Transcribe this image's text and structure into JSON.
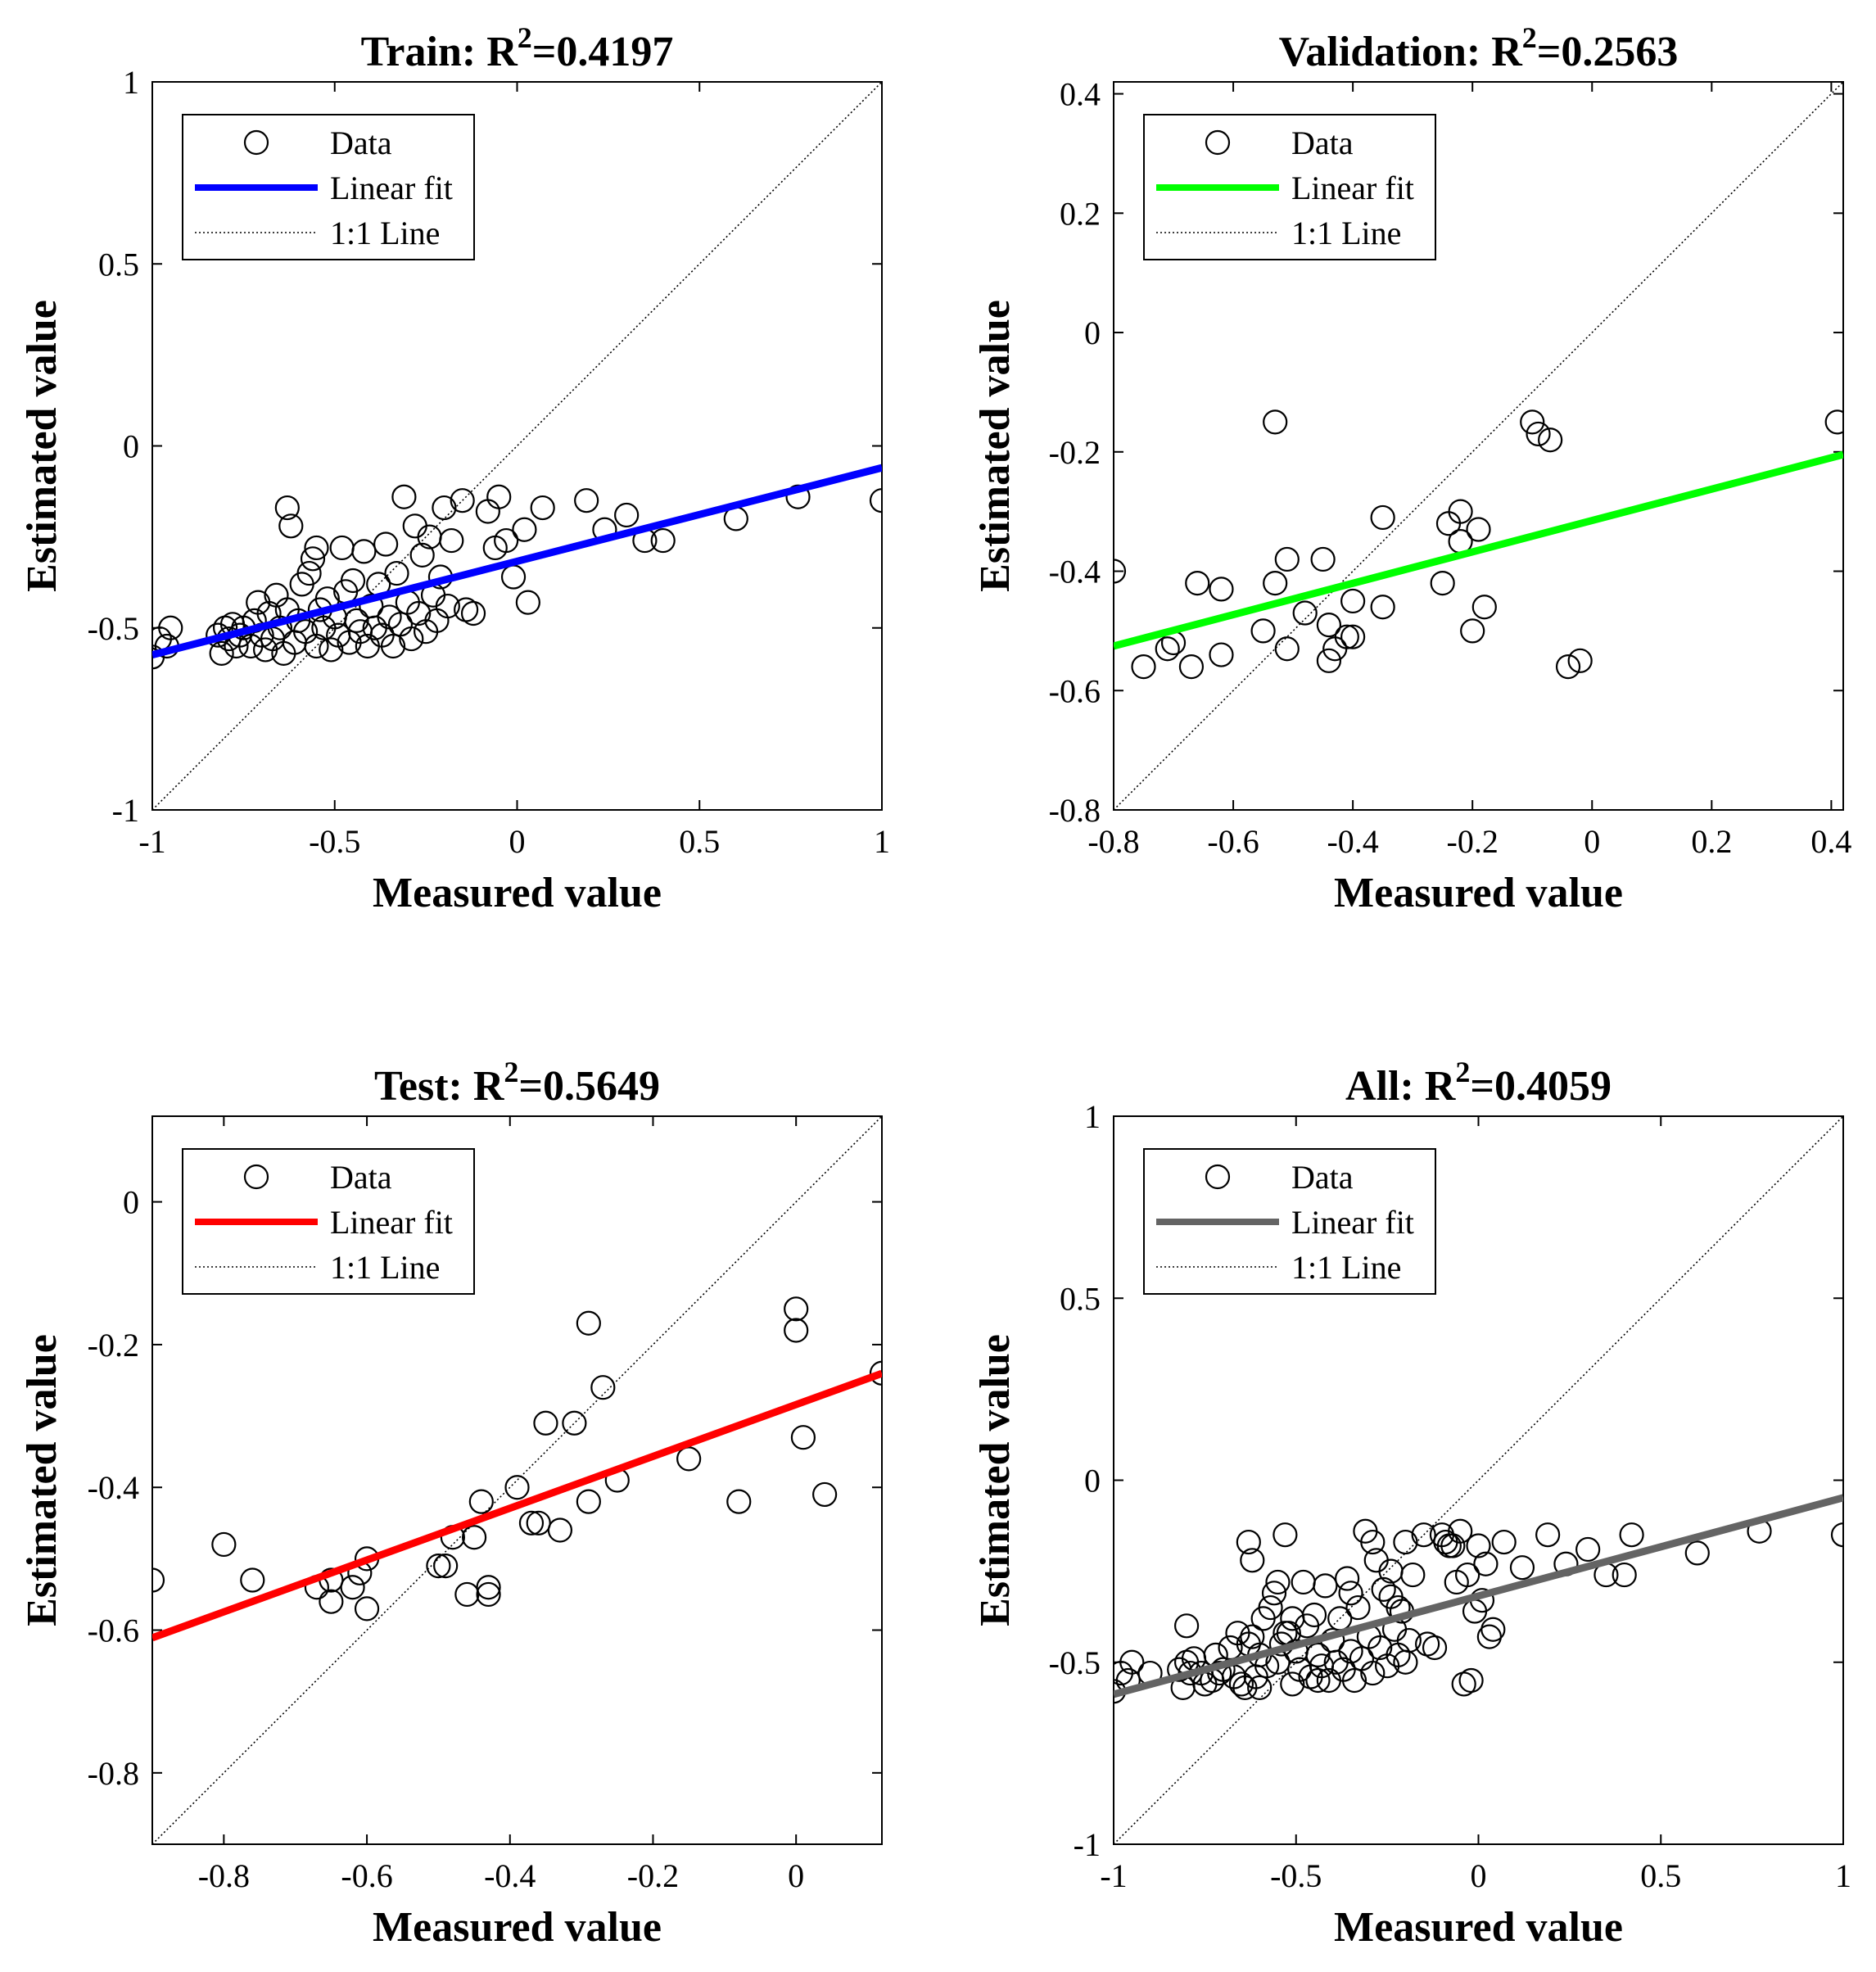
{
  "chart_data": [
    {
      "type": "scatter",
      "title": "Train: R",
      "title_sup": "2",
      "title_value": "=0.4197",
      "xlabel": "Measured value",
      "ylabel": "Estimated value",
      "xlim": [
        -1,
        1
      ],
      "ylim": [
        -1,
        1
      ],
      "xticks": [
        -1,
        -0.5,
        0,
        0.5,
        1
      ],
      "yticks": [
        -1,
        -0.5,
        0,
        0.5,
        1
      ],
      "xtick_labels": [
        "-1",
        "-0.5",
        "0",
        "0.5",
        "1"
      ],
      "ytick_labels": [
        "-1",
        "-0.5",
        "0",
        "0.5",
        "1"
      ],
      "fit_color": "#0000ff",
      "fit": {
        "slope": 0.257,
        "intercept": -0.317
      },
      "legend": {
        "data": "Data",
        "fit": "Linear fit",
        "identity": "1:1 Line",
        "position": "top-left"
      },
      "points": [
        [
          -1,
          -0.58
        ],
        [
          -0.98,
          -0.53
        ],
        [
          -0.96,
          -0.55
        ],
        [
          -0.95,
          -0.5
        ],
        [
          -0.82,
          -0.52
        ],
        [
          -0.81,
          -0.57
        ],
        [
          -0.8,
          -0.5
        ],
        [
          -0.79,
          -0.53
        ],
        [
          -0.78,
          -0.49
        ],
        [
          -0.77,
          -0.55
        ],
        [
          -0.76,
          -0.52
        ],
        [
          -0.75,
          -0.5
        ],
        [
          -0.73,
          -0.55
        ],
        [
          -0.72,
          -0.48
        ],
        [
          -0.71,
          -0.43
        ],
        [
          -0.7,
          -0.52
        ],
        [
          -0.69,
          -0.56
        ],
        [
          -0.68,
          -0.46
        ],
        [
          -0.67,
          -0.53
        ],
        [
          -0.66,
          -0.41
        ],
        [
          -0.65,
          -0.5
        ],
        [
          -0.64,
          -0.57
        ],
        [
          -0.63,
          -0.45
        ],
        [
          -0.63,
          -0.17
        ],
        [
          -0.62,
          -0.22
        ],
        [
          -0.61,
          -0.54
        ],
        [
          -0.6,
          -0.48
        ],
        [
          -0.59,
          -0.38
        ],
        [
          -0.58,
          -0.51
        ],
        [
          -0.57,
          -0.35
        ],
        [
          -0.56,
          -0.31
        ],
        [
          -0.55,
          -0.28
        ],
        [
          -0.55,
          -0.55
        ],
        [
          -0.54,
          -0.45
        ],
        [
          -0.53,
          -0.5
        ],
        [
          -0.52,
          -0.42
        ],
        [
          -0.51,
          -0.56
        ],
        [
          -0.5,
          -0.47
        ],
        [
          -0.49,
          -0.52
        ],
        [
          -0.48,
          -0.28
        ],
        [
          -0.47,
          -0.4
        ],
        [
          -0.46,
          -0.54
        ],
        [
          -0.45,
          -0.37
        ],
        [
          -0.44,
          -0.48
        ],
        [
          -0.43,
          -0.51
        ],
        [
          -0.42,
          -0.29
        ],
        [
          -0.41,
          -0.55
        ],
        [
          -0.4,
          -0.44
        ],
        [
          -0.39,
          -0.5
        ],
        [
          -0.38,
          -0.38
        ],
        [
          -0.37,
          -0.52
        ],
        [
          -0.36,
          -0.27
        ],
        [
          -0.35,
          -0.47
        ],
        [
          -0.34,
          -0.55
        ],
        [
          -0.33,
          -0.35
        ],
        [
          -0.32,
          -0.49
        ],
        [
          -0.31,
          -0.14
        ],
        [
          -0.3,
          -0.43
        ],
        [
          -0.29,
          -0.53
        ],
        [
          -0.28,
          -0.22
        ],
        [
          -0.27,
          -0.46
        ],
        [
          -0.26,
          -0.3
        ],
        [
          -0.25,
          -0.51
        ],
        [
          -0.24,
          -0.25
        ],
        [
          -0.23,
          -0.41
        ],
        [
          -0.22,
          -0.48
        ],
        [
          -0.21,
          -0.36
        ],
        [
          -0.2,
          -0.17
        ],
        [
          -0.19,
          -0.44
        ],
        [
          -0.18,
          -0.26
        ],
        [
          -0.15,
          -0.15
        ],
        [
          -0.14,
          -0.45
        ],
        [
          -0.12,
          -0.46
        ],
        [
          -0.08,
          -0.18
        ],
        [
          -0.06,
          -0.28
        ],
        [
          -0.05,
          -0.14
        ],
        [
          -0.03,
          -0.26
        ],
        [
          -0.01,
          -0.36
        ],
        [
          0.02,
          -0.23
        ],
        [
          0.03,
          -0.43
        ],
        [
          0.07,
          -0.17
        ],
        [
          0.19,
          -0.15
        ],
        [
          0.24,
          -0.23
        ],
        [
          0.3,
          -0.19
        ],
        [
          0.35,
          -0.26
        ],
        [
          0.4,
          -0.26
        ],
        [
          0.6,
          -0.2
        ],
        [
          0.77,
          -0.14
        ],
        [
          1,
          -0.15
        ]
      ]
    },
    {
      "type": "scatter",
      "title": "Validation: R",
      "title_sup": "2",
      "title_value": "=0.2563",
      "xlabel": "Measured value",
      "ylabel": "Estimated value",
      "xlim": [
        -0.8,
        0.42
      ],
      "ylim": [
        -0.8,
        0.42
      ],
      "xticks": [
        -0.8,
        -0.6,
        -0.4,
        -0.2,
        0,
        0.2,
        0.4
      ],
      "yticks": [
        -0.8,
        -0.6,
        -0.4,
        -0.2,
        0,
        0.2,
        0.4
      ],
      "xtick_labels": [
        "-0.8",
        "-0.6",
        "-0.4",
        "-0.2",
        "0",
        "0.2",
        "0.4"
      ],
      "ytick_labels": [
        "-0.8",
        "-0.6",
        "-0.4",
        "-0.2",
        "0",
        "0.2",
        "0.4"
      ],
      "fit_color": "#00ff00",
      "fit": {
        "slope": 0.263,
        "intercept": -0.315
      },
      "legend": {
        "data": "Data",
        "fit": "Linear fit",
        "identity": "1:1 Line",
        "position": "top-left"
      },
      "points": [
        [
          -0.8,
          -0.4
        ],
        [
          -0.75,
          -0.56
        ],
        [
          -0.71,
          -0.53
        ],
        [
          -0.7,
          -0.52
        ],
        [
          -0.67,
          -0.56
        ],
        [
          -0.66,
          -0.42
        ],
        [
          -0.62,
          -0.54
        ],
        [
          -0.62,
          -0.43
        ],
        [
          -0.55,
          -0.5
        ],
        [
          -0.53,
          -0.42
        ],
        [
          -0.53,
          -0.15
        ],
        [
          -0.51,
          -0.53
        ],
        [
          -0.51,
          -0.38
        ],
        [
          -0.48,
          -0.47
        ],
        [
          -0.45,
          -0.38
        ],
        [
          -0.44,
          -0.49
        ],
        [
          -0.44,
          -0.55
        ],
        [
          -0.43,
          -0.53
        ],
        [
          -0.41,
          -0.51
        ],
        [
          -0.4,
          -0.45
        ],
        [
          -0.4,
          -0.51
        ],
        [
          -0.35,
          -0.31
        ],
        [
          -0.35,
          -0.46
        ],
        [
          -0.25,
          -0.42
        ],
        [
          -0.24,
          -0.32
        ],
        [
          -0.22,
          -0.35
        ],
        [
          -0.22,
          -0.3
        ],
        [
          -0.2,
          -0.5
        ],
        [
          -0.19,
          -0.33
        ],
        [
          -0.18,
          -0.46
        ],
        [
          -0.1,
          -0.15
        ],
        [
          -0.09,
          -0.17
        ],
        [
          -0.07,
          -0.18
        ],
        [
          -0.04,
          -0.56
        ],
        [
          -0.02,
          -0.55
        ],
        [
          0.41,
          -0.15
        ]
      ]
    },
    {
      "type": "scatter",
      "title": "Test: R",
      "title_sup": "2",
      "title_value": "=0.5649",
      "xlabel": "Measured value",
      "ylabel": "Estimated value",
      "xlim": [
        -0.9,
        0.12
      ],
      "ylim": [
        -0.9,
        0.12
      ],
      "xticks": [
        -0.8,
        -0.6,
        -0.4,
        -0.2,
        0
      ],
      "yticks": [
        -0.8,
        -0.6,
        -0.4,
        -0.2,
        0
      ],
      "xtick_labels": [
        "-0.8",
        "-0.6",
        "-0.4",
        "-0.2",
        "0"
      ],
      "ytick_labels": [
        "-0.8",
        "-0.6",
        "-0.4",
        "-0.2",
        "0"
      ],
      "fit_color": "#ff0000",
      "fit": {
        "slope": 0.363,
        "intercept": -0.284
      },
      "legend": {
        "data": "Data",
        "fit": "Linear fit",
        "identity": "1:1 Line",
        "position": "top-left"
      },
      "points": [
        [
          -0.9,
          -0.53
        ],
        [
          -0.8,
          -0.48
        ],
        [
          -0.76,
          -0.53
        ],
        [
          -0.67,
          -0.54
        ],
        [
          -0.65,
          -0.53
        ],
        [
          -0.65,
          -0.56
        ],
        [
          -0.62,
          -0.54
        ],
        [
          -0.61,
          -0.52
        ],
        [
          -0.6,
          -0.5
        ],
        [
          -0.6,
          -0.57
        ],
        [
          -0.5,
          -0.51
        ],
        [
          -0.49,
          -0.51
        ],
        [
          -0.48,
          -0.47
        ],
        [
          -0.46,
          -0.55
        ],
        [
          -0.45,
          -0.47
        ],
        [
          -0.44,
          -0.42
        ],
        [
          -0.43,
          -0.54
        ],
        [
          -0.43,
          -0.55
        ],
        [
          -0.39,
          -0.4
        ],
        [
          -0.37,
          -0.45
        ],
        [
          -0.36,
          -0.45
        ],
        [
          -0.35,
          -0.31
        ],
        [
          -0.33,
          -0.46
        ],
        [
          -0.31,
          -0.31
        ],
        [
          -0.29,
          -0.42
        ],
        [
          -0.29,
          -0.17
        ],
        [
          -0.27,
          -0.26
        ],
        [
          -0.25,
          -0.39
        ],
        [
          -0.15,
          -0.36
        ],
        [
          -0.08,
          -0.42
        ],
        [
          0,
          -0.18
        ],
        [
          0,
          -0.15
        ],
        [
          0.01,
          -0.33
        ],
        [
          0.04,
          -0.41
        ],
        [
          0.12,
          -0.24
        ]
      ]
    },
    {
      "type": "scatter",
      "title": "All: R",
      "title_sup": "2",
      "title_value": "=0.4059",
      "xlabel": "Measured value",
      "ylabel": "Estimated value",
      "xlim": [
        -1,
        1
      ],
      "ylim": [
        -1,
        1
      ],
      "xticks": [
        -1,
        -0.5,
        0,
        0.5,
        1
      ],
      "yticks": [
        -1,
        -0.5,
        0,
        0.5,
        1
      ],
      "xtick_labels": [
        "-1",
        "-0.5",
        "0",
        "0.5",
        "1"
      ],
      "ytick_labels": [
        "-1",
        "-0.5",
        "0",
        "0.5",
        "1"
      ],
      "fit_color": "#646464",
      "fit": {
        "slope": 0.27,
        "intercept": -0.318
      },
      "legend": {
        "data": "Data",
        "fit": "Linear fit",
        "identity": "1:1 Line",
        "position": "top-left"
      },
      "points": [
        [
          -1,
          -0.58
        ],
        [
          -0.98,
          -0.53
        ],
        [
          -0.96,
          -0.55
        ],
        [
          -0.95,
          -0.5
        ],
        [
          -0.9,
          -0.53
        ],
        [
          -0.82,
          -0.52
        ],
        [
          -0.81,
          -0.57
        ],
        [
          -0.8,
          -0.5
        ],
        [
          -0.8,
          -0.4
        ],
        [
          -0.79,
          -0.53
        ],
        [
          -0.78,
          -0.49
        ],
        [
          -0.76,
          -0.53
        ],
        [
          -0.75,
          -0.56
        ],
        [
          -0.73,
          -0.55
        ],
        [
          -0.72,
          -0.48
        ],
        [
          -0.71,
          -0.53
        ],
        [
          -0.7,
          -0.52
        ],
        [
          -0.68,
          -0.46
        ],
        [
          -0.67,
          -0.54
        ],
        [
          -0.66,
          -0.42
        ],
        [
          -0.65,
          -0.56
        ],
        [
          -0.64,
          -0.57
        ],
        [
          -0.63,
          -0.45
        ],
        [
          -0.63,
          -0.17
        ],
        [
          -0.62,
          -0.22
        ],
        [
          -0.62,
          -0.43
        ],
        [
          -0.61,
          -0.54
        ],
        [
          -0.6,
          -0.48
        ],
        [
          -0.6,
          -0.57
        ],
        [
          -0.59,
          -0.38
        ],
        [
          -0.58,
          -0.51
        ],
        [
          -0.57,
          -0.35
        ],
        [
          -0.56,
          -0.31
        ],
        [
          -0.55,
          -0.28
        ],
        [
          -0.55,
          -0.5
        ],
        [
          -0.54,
          -0.45
        ],
        [
          -0.53,
          -0.42
        ],
        [
          -0.53,
          -0.15
        ],
        [
          -0.52,
          -0.42
        ],
        [
          -0.51,
          -0.56
        ],
        [
          -0.51,
          -0.38
        ],
        [
          -0.5,
          -0.47
        ],
        [
          -0.49,
          -0.52
        ],
        [
          -0.48,
          -0.28
        ],
        [
          -0.47,
          -0.4
        ],
        [
          -0.46,
          -0.54
        ],
        [
          -0.45,
          -0.37
        ],
        [
          -0.44,
          -0.48
        ],
        [
          -0.44,
          -0.55
        ],
        [
          -0.43,
          -0.51
        ],
        [
          -0.42,
          -0.29
        ],
        [
          -0.41,
          -0.55
        ],
        [
          -0.4,
          -0.44
        ],
        [
          -0.39,
          -0.5
        ],
        [
          -0.38,
          -0.38
        ],
        [
          -0.37,
          -0.52
        ],
        [
          -0.36,
          -0.27
        ],
        [
          -0.35,
          -0.47
        ],
        [
          -0.35,
          -0.31
        ],
        [
          -0.34,
          -0.55
        ],
        [
          -0.33,
          -0.35
        ],
        [
          -0.32,
          -0.49
        ],
        [
          -0.31,
          -0.14
        ],
        [
          -0.3,
          -0.43
        ],
        [
          -0.29,
          -0.53
        ],
        [
          -0.29,
          -0.17
        ],
        [
          -0.28,
          -0.22
        ],
        [
          -0.27,
          -0.46
        ],
        [
          -0.26,
          -0.3
        ],
        [
          -0.25,
          -0.51
        ],
        [
          -0.24,
          -0.25
        ],
        [
          -0.24,
          -0.32
        ],
        [
          -0.23,
          -0.41
        ],
        [
          -0.22,
          -0.48
        ],
        [
          -0.22,
          -0.35
        ],
        [
          -0.21,
          -0.36
        ],
        [
          -0.2,
          -0.17
        ],
        [
          -0.2,
          -0.5
        ],
        [
          -0.19,
          -0.44
        ],
        [
          -0.18,
          -0.26
        ],
        [
          -0.15,
          -0.15
        ],
        [
          -0.14,
          -0.45
        ],
        [
          -0.12,
          -0.46
        ],
        [
          -0.1,
          -0.15
        ],
        [
          -0.09,
          -0.17
        ],
        [
          -0.08,
          -0.18
        ],
        [
          -0.07,
          -0.18
        ],
        [
          -0.06,
          -0.28
        ],
        [
          -0.05,
          -0.14
        ],
        [
          -0.04,
          -0.56
        ],
        [
          -0.03,
          -0.26
        ],
        [
          -0.02,
          -0.55
        ],
        [
          -0.01,
          -0.36
        ],
        [
          0,
          -0.18
        ],
        [
          0.01,
          -0.33
        ],
        [
          0.02,
          -0.23
        ],
        [
          0.03,
          -0.43
        ],
        [
          0.04,
          -0.41
        ],
        [
          0.07,
          -0.17
        ],
        [
          0.12,
          -0.24
        ],
        [
          0.19,
          -0.15
        ],
        [
          0.24,
          -0.23
        ],
        [
          0.3,
          -0.19
        ],
        [
          0.35,
          -0.26
        ],
        [
          0.4,
          -0.26
        ],
        [
          0.42,
          -0.15
        ],
        [
          0.6,
          -0.2
        ],
        [
          0.77,
          -0.14
        ],
        [
          1,
          -0.15
        ]
      ]
    }
  ]
}
